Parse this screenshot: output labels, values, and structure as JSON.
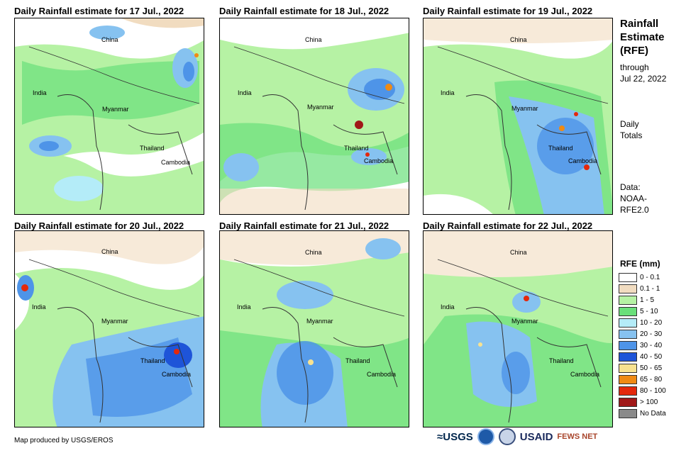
{
  "panels": [
    {
      "title": "Daily Rainfall estimate for 17 Jul., 2022"
    },
    {
      "title": "Daily Rainfall estimate for 18 Jul., 2022"
    },
    {
      "title": "Daily Rainfall estimate for 19 Jul., 2022"
    },
    {
      "title": "Daily Rainfall estimate for 20 Jul., 2022"
    },
    {
      "title": "Daily Rainfall estimate for 21 Jul., 2022"
    },
    {
      "title": "Daily Rainfall estimate for 22 Jul., 2022"
    }
  ],
  "map_labels": {
    "china": "China",
    "india": "India",
    "myanmar": "Myanmar",
    "thailand": "Thailand",
    "cambodia": "Cambodia"
  },
  "sidebar": {
    "title_line1": "Rainfall",
    "title_line2": "Estimate",
    "title_line3": "(RFE)",
    "through": "through",
    "date": "Jul 22, 2022",
    "daily": "Daily",
    "totals": "Totals",
    "data_label": "Data:",
    "source_line1": "NOAA-",
    "source_line2": "RFE2.0"
  },
  "legend": {
    "title": "RFE (mm)",
    "items": [
      {
        "label": "0 - 0.1",
        "color": "#ffffff"
      },
      {
        "label": "0.1 - 1",
        "color": "#f1dcc0"
      },
      {
        "label": "1 - 5",
        "color": "#b6f2a4"
      },
      {
        "label": "5 - 10",
        "color": "#6ae07a"
      },
      {
        "label": "10 - 20",
        "color": "#b4ecf8"
      },
      {
        "label": "20 - 30",
        "color": "#86c2f0"
      },
      {
        "label": "30 - 40",
        "color": "#4e94e8"
      },
      {
        "label": "40 - 50",
        "color": "#1e54d8"
      },
      {
        "label": "50 - 65",
        "color": "#f8e290"
      },
      {
        "label": "65 - 80",
        "color": "#f08a14"
      },
      {
        "label": "80 - 100",
        "color": "#e4280c"
      },
      {
        "label": "> 100",
        "color": "#a01818"
      },
      {
        "label": "No Data",
        "color": "#8a8a8a"
      }
    ]
  },
  "credit": "Map produced by USGS/EROS",
  "logos": {
    "usgs": "≈USGS",
    "usaid": "USAID",
    "fews": "FEWS NET"
  }
}
